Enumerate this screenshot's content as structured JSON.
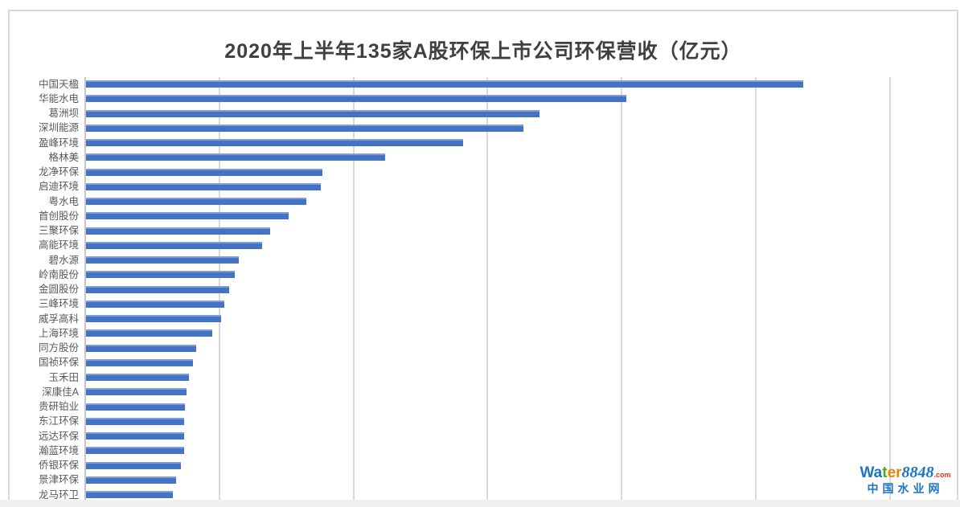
{
  "page": {
    "background": "#ffffff",
    "bottom_strip_color": "#f0f0ee",
    "frame_border_color": "#d9d9d9"
  },
  "chart_data": {
    "type": "bar",
    "orientation": "horizontal",
    "title": "2020年上半年135家A股环保上市公司环保营收（亿元）",
    "unit": "亿元",
    "categories": [
      "中国天楹",
      "华能水电",
      "葛洲坝",
      "深圳能源",
      "盈峰环境",
      "格林美",
      "龙净环保",
      "启迪环境",
      "粤水电",
      "首创股份",
      "三聚环保",
      "高能环境",
      "碧水源",
      "岭南股份",
      "金圆股份",
      "三峰环境",
      "威孚高科",
      "上海环境",
      "同方股份",
      "国祯环保",
      "玉禾田",
      "深康佳A",
      "贵研铂业",
      "东江环保",
      "远达环保",
      "瀚蓝环境",
      "侨银环保",
      "景津环保",
      "龙马环卫"
    ],
    "values": [
      53.5,
      40.3,
      33.8,
      32.6,
      28.1,
      22.3,
      17.6,
      17.5,
      16.4,
      15.1,
      13.7,
      13.1,
      11.4,
      11.1,
      10.7,
      10.3,
      10.1,
      9.4,
      8.2,
      8.0,
      7.7,
      7.5,
      7.4,
      7.3,
      7.3,
      7.3,
      7.1,
      6.7,
      6.5
    ],
    "xlim": [
      0,
      65
    ],
    "gridline_values": [
      10,
      20,
      30,
      40,
      50,
      60
    ],
    "grid_on": true,
    "legend": "none",
    "bar_color": "#4472C4",
    "gridline_color": "#D9D9D9",
    "axis_line_color": "#C6C6C6",
    "title_color": "#404040",
    "label_color": "#595959"
  },
  "watermark": {
    "brand_wa": "Wa",
    "brand_t": "t",
    "brand_er": "er",
    "brand_number": "8848",
    "brand_domain": ".com",
    "subtitle": "中国水业网",
    "colors": {
      "blue": "#1b75c4",
      "green": "#4aa520",
      "orange": "#f08300",
      "red": "#e53020"
    }
  }
}
